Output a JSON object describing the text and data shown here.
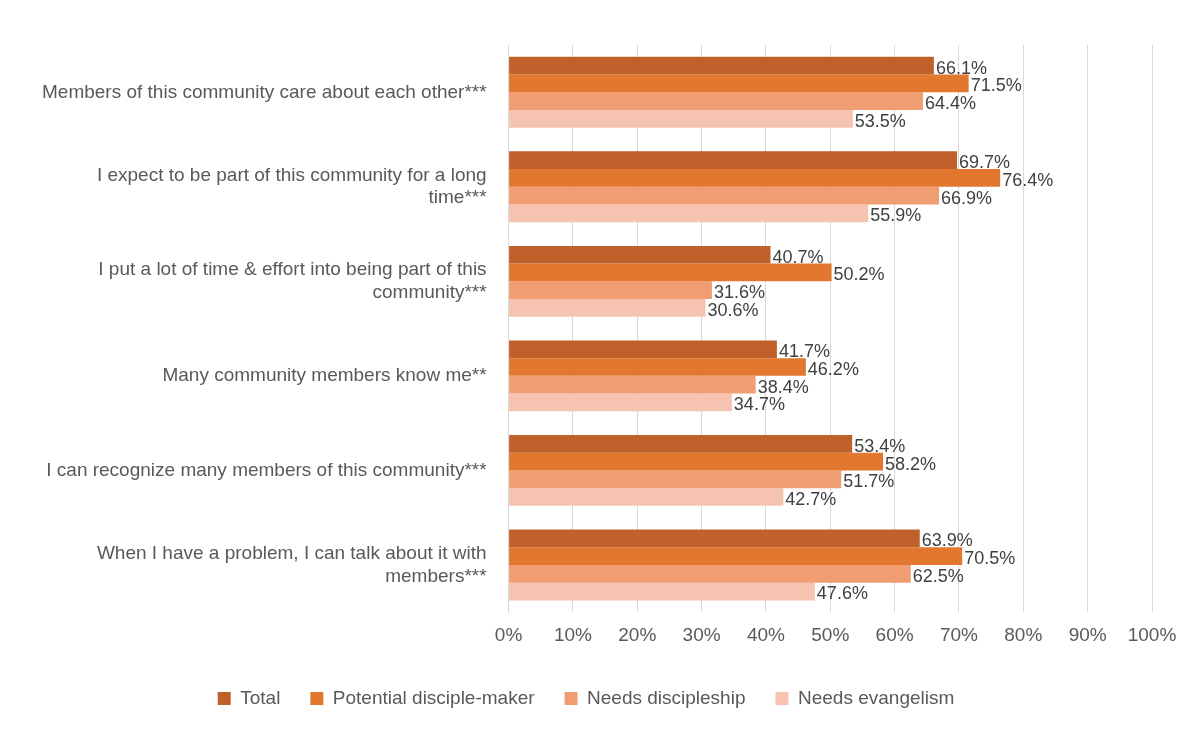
{
  "chart_data": {
    "type": "bar",
    "orientation": "horizontal",
    "categories": [
      "Members of this community care about each other***",
      "I expect to be part of this community for a long time***",
      "I put a lot of time & effort into being part of this community***",
      "Many community members know me**",
      "I can recognize many members of this community***",
      "When I have a problem, I can talk about it with members***"
    ],
    "series": [
      {
        "name": "Total",
        "color": "#c0602a",
        "values": [
          66.1,
          69.7,
          40.7,
          41.7,
          53.4,
          63.9
        ],
        "value_labels": [
          "66.1%",
          "69.7%",
          "40.7%",
          "41.7%",
          "53.4%",
          "63.9%"
        ]
      },
      {
        "name": "Potential disciple-maker",
        "color": "#e2772f",
        "values": [
          71.5,
          76.4,
          50.2,
          46.2,
          58.2,
          70.5
        ],
        "value_labels": [
          "71.5%",
          "76.4%",
          "50.2%",
          "46.2%",
          "58.2%",
          "70.5%"
        ]
      },
      {
        "name": "Needs discipleship",
        "color": "#f09d74",
        "values": [
          64.4,
          66.9,
          31.6,
          38.4,
          51.7,
          62.5
        ],
        "value_labels": [
          "64.4%",
          "66.9%",
          "31.6%",
          "38.4%",
          "51.7%",
          "62.5%"
        ]
      },
      {
        "name": "Needs evangelism",
        "color": "#f6c3b0",
        "values": [
          53.5,
          55.9,
          30.6,
          34.7,
          42.7,
          47.6
        ],
        "value_labels": [
          "53.5%",
          "55.9%",
          "30.6%",
          "34.7%",
          "42.7%",
          "47.6%"
        ]
      }
    ],
    "xlim": [
      0,
      100
    ],
    "xticks": [
      {
        "value": 0,
        "label": "0%"
      },
      {
        "value": 10,
        "label": "10%"
      },
      {
        "value": 20,
        "label": "20%"
      },
      {
        "value": 30,
        "label": "30%"
      },
      {
        "value": 40,
        "label": "40%"
      },
      {
        "value": 50,
        "label": "50%"
      },
      {
        "value": 60,
        "label": "60%"
      },
      {
        "value": 70,
        "label": "70%"
      },
      {
        "value": 80,
        "label": "80%"
      },
      {
        "value": 90,
        "label": "90%"
      },
      {
        "value": 100,
        "label": "100%"
      }
    ],
    "grid": "x",
    "legend": "bottom"
  }
}
